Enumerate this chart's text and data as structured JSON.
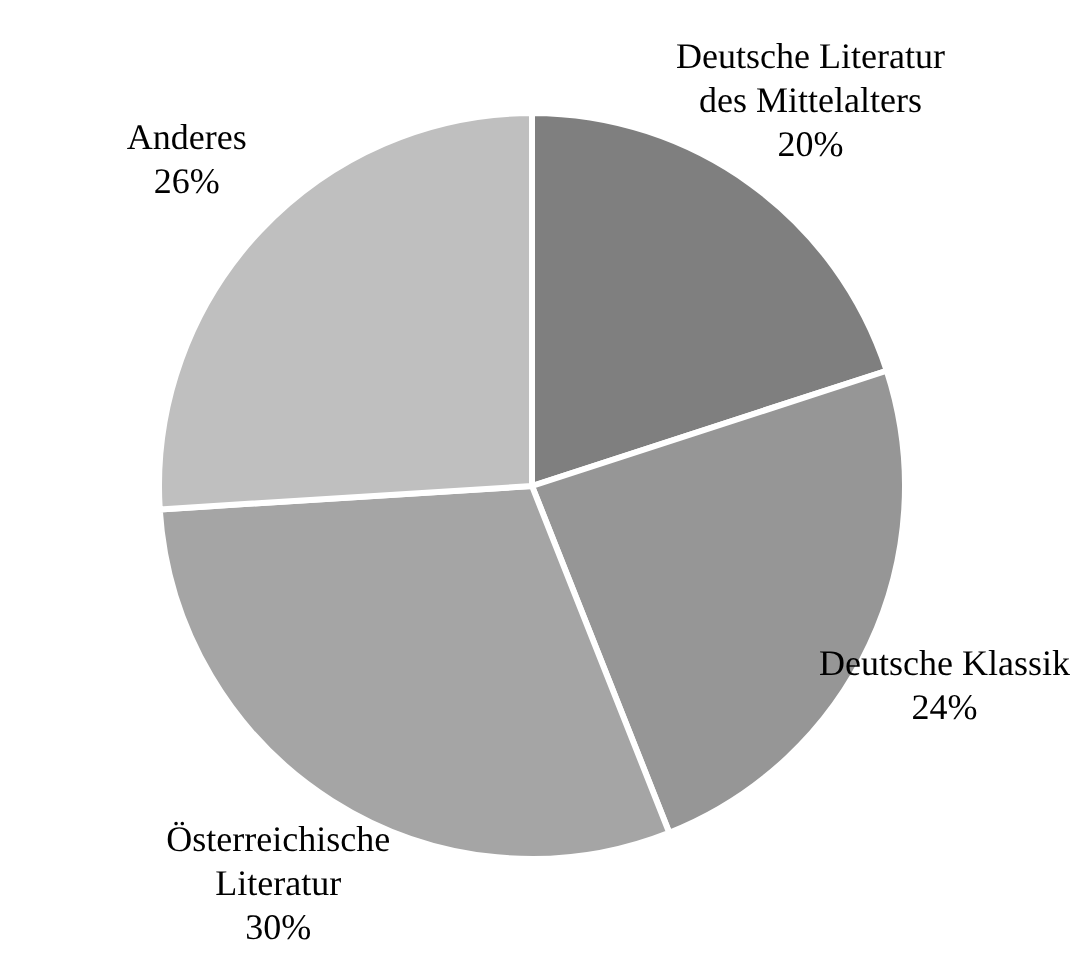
{
  "chart_data": {
    "type": "pie",
    "categories": [
      "Deutsche Literatur des Mittelalters",
      "Deutsche Klassik",
      "Österreichische Literatur",
      "Anderes"
    ],
    "values": [
      20,
      24,
      30,
      26
    ],
    "colors": [
      "#7f7f7f",
      "#969696",
      "#a5a5a5",
      "#bfbfbf"
    ],
    "value_labels": [
      "20%",
      "24%",
      "30%",
      "26%"
    ],
    "legend": false
  }
}
